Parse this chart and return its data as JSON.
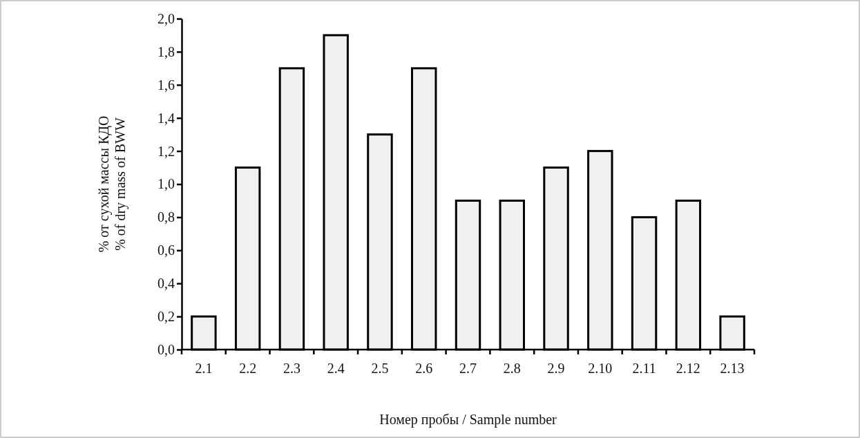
{
  "chart_data": {
    "type": "bar",
    "xlabel": "Номер пробы / Sample number",
    "ylabel": "% от сухой массы КДО\n% of dry mass of BWW",
    "categories": [
      "2.1",
      "2.2",
      "2.3",
      "2.4",
      "2.5",
      "2.6",
      "2.7",
      "2.8",
      "2.9",
      "2.10",
      "2.11",
      "2.12",
      "2.13"
    ],
    "values": [
      0.2,
      1.1,
      1.7,
      1.9,
      1.3,
      1.7,
      0.9,
      0.9,
      1.1,
      1.2,
      0.8,
      0.9,
      0.2
    ],
    "color": "#f0f0f0",
    "ylim": [
      0,
      2
    ],
    "yticks": [
      {
        "value": 0,
        "label": "0,0"
      },
      {
        "value": 0.2,
        "label": "0,2"
      },
      {
        "value": 0.4,
        "label": "0,4"
      },
      {
        "value": 0.6,
        "label": "0,6"
      },
      {
        "value": 0.8,
        "label": "0,8"
      },
      {
        "value": 1,
        "label": "1,0"
      },
      {
        "value": 1.2,
        "label": "1,2"
      },
      {
        "value": 1.4,
        "label": "1,4"
      },
      {
        "value": 1.6,
        "label": "1,6"
      },
      {
        "value": 1.8,
        "label": "1,8"
      },
      {
        "value": 2,
        "label": "2,0"
      }
    ],
    "grid": false
  }
}
